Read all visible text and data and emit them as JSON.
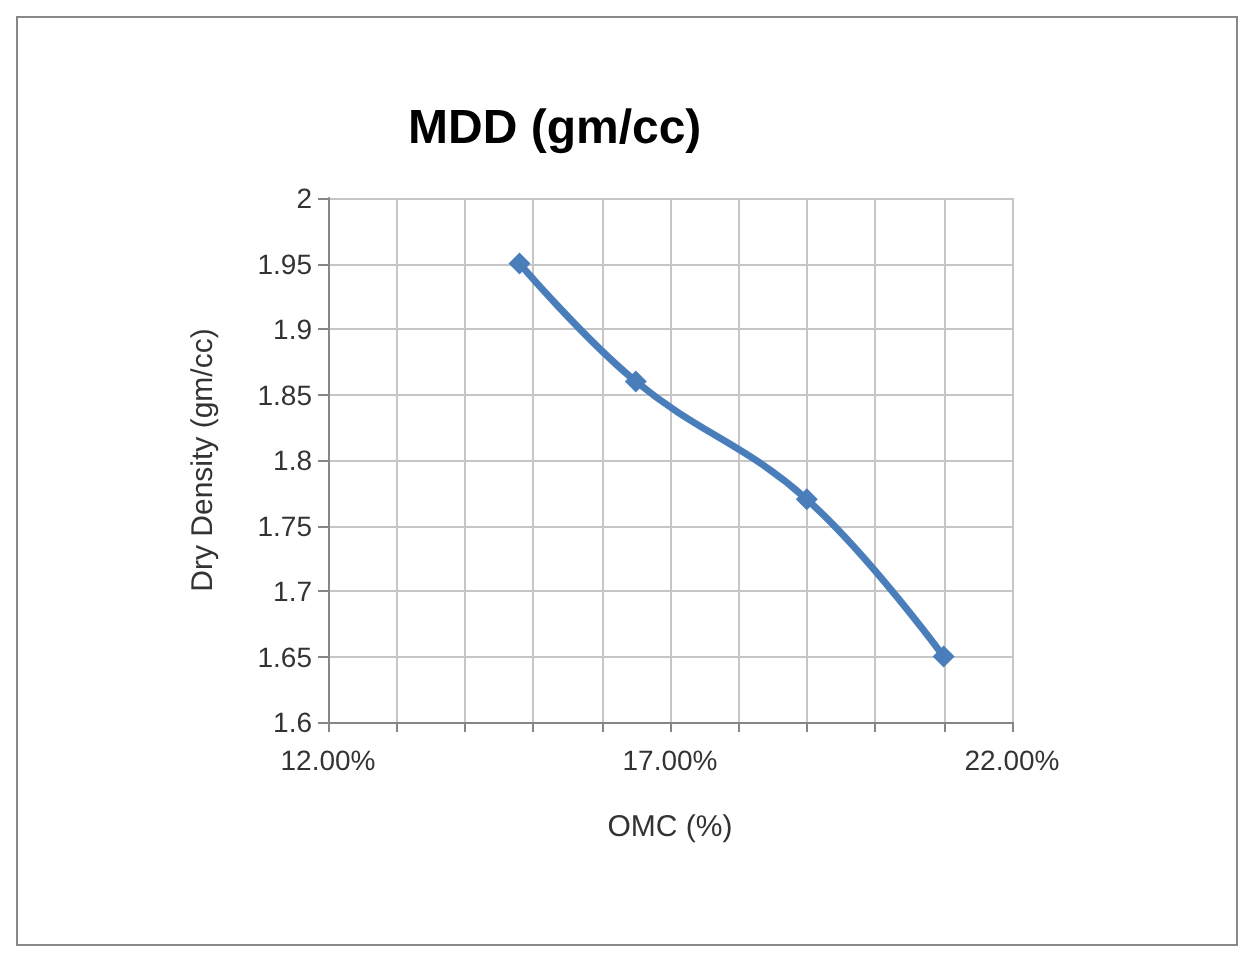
{
  "chart_data": {
    "type": "line",
    "title": "MDD (gm/cc)",
    "xlabel": "OMC (%)",
    "ylabel": "Dry Density (gm/cc)",
    "x": [
      0.148,
      0.165,
      0.19,
      0.21
    ],
    "series": [
      {
        "color": "#4a7ebb",
        "values": [
          1.95,
          1.86,
          1.77,
          1.65
        ]
      }
    ],
    "xlim": [
      0.12,
      0.22
    ],
    "xticks": [
      {
        "value": 0.12,
        "label": "12.00%"
      },
      {
        "value": 0.13,
        "label": null
      },
      {
        "value": 0.14,
        "label": null
      },
      {
        "value": 0.15,
        "label": null
      },
      {
        "value": 0.16,
        "label": null
      },
      {
        "value": 0.17,
        "label": "17.00%"
      },
      {
        "value": 0.18,
        "label": null
      },
      {
        "value": 0.19,
        "label": null
      },
      {
        "value": 0.2,
        "label": null
      },
      {
        "value": 0.21,
        "label": null
      },
      {
        "value": 0.22,
        "label": "22.00%"
      }
    ],
    "ylim": [
      1.6,
      2
    ],
    "yticks": [
      1.6,
      1.65,
      1.7,
      1.75,
      1.8,
      1.85,
      1.9,
      1.95,
      2
    ],
    "grid": true,
    "marker": "diamond",
    "line_style": "solid"
  }
}
